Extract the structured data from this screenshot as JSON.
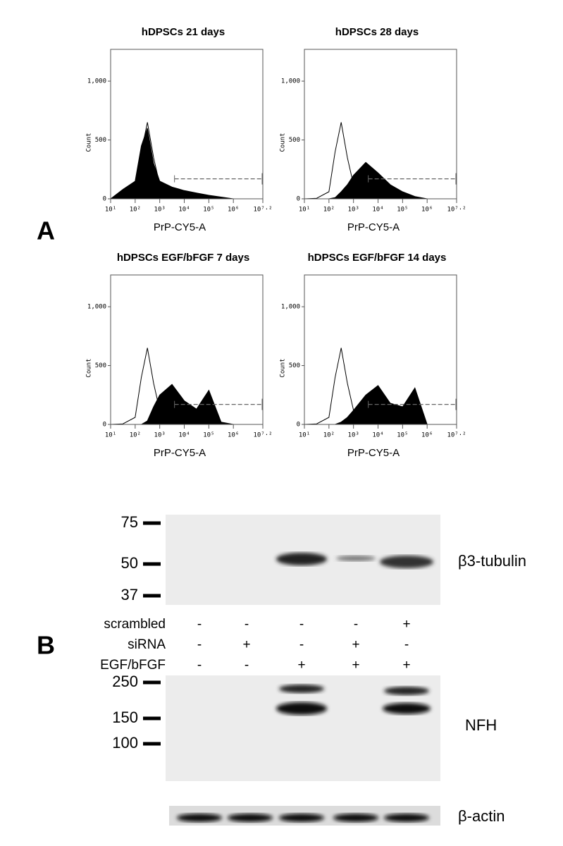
{
  "panel_labels": {
    "a": "A",
    "b": "B"
  },
  "chart_data": [
    {
      "type": "histogram",
      "title": "hDPSCs 21 days",
      "x_label": "PrP-CY5-A",
      "y_label": "Count",
      "xscale": "log",
      "xlim": [
        10,
        15848932
      ],
      "ylim": [
        0,
        1270
      ],
      "xticks": [
        {
          "value": 10,
          "label": "10¹"
        },
        {
          "value": 100,
          "label": "10²"
        },
        {
          "value": 1000,
          "label": "10³"
        },
        {
          "value": 10000,
          "label": "10⁴"
        },
        {
          "value": 100000,
          "label": "10⁵"
        },
        {
          "value": 1000000,
          "label": "10⁶"
        },
        {
          "value": 15848932,
          "label": "10⁷·²"
        }
      ],
      "yticks": [
        0,
        500,
        {
          "value": 1000,
          "label": "1,000"
        }
      ],
      "x": [
        10,
        31.6,
        100,
        178,
        316,
        562,
        1000,
        3162,
        10000,
        31623,
        100000,
        316228,
        1000000,
        10000000
      ],
      "series": [
        {
          "color": "#000000",
          "filled": false,
          "values": [
            0,
            5,
            60,
            400,
            650,
            350,
            120,
            10,
            0,
            0,
            0,
            0,
            0,
            0
          ]
        },
        {
          "color": "#000000",
          "filled": true,
          "values": [
            0,
            80,
            150,
            450,
            600,
            300,
            150,
            100,
            70,
            50,
            30,
            15,
            0,
            0
          ]
        }
      ],
      "gate": {
        "x": [
          4000,
          15848932
        ],
        "y": 170
      }
    },
    {
      "type": "histogram",
      "title": "hDPSCs 28 days",
      "x_label": "PrP-CY5-A",
      "y_label": "Count",
      "xscale": "log",
      "xlim": [
        10,
        15848932
      ],
      "ylim": [
        0,
        1270
      ],
      "xticks": [
        {
          "value": 10,
          "label": "10¹"
        },
        {
          "value": 100,
          "label": "10²"
        },
        {
          "value": 1000,
          "label": "10³"
        },
        {
          "value": 10000,
          "label": "10⁴"
        },
        {
          "value": 100000,
          "label": "10⁵"
        },
        {
          "value": 1000000,
          "label": "10⁶"
        },
        {
          "value": 15848932,
          "label": "10⁷·²"
        }
      ],
      "yticks": [
        0,
        500,
        {
          "value": 1000,
          "label": "1,000"
        }
      ],
      "x": [
        10,
        31.6,
        100,
        178,
        316,
        562,
        1000,
        3162,
        10000,
        31623,
        100000,
        316228,
        1000000,
        10000000
      ],
      "series": [
        {
          "color": "#000000",
          "filled": false,
          "values": [
            0,
            5,
            60,
            400,
            650,
            350,
            120,
            10,
            0,
            0,
            0,
            0,
            0,
            0
          ]
        },
        {
          "color": "#000000",
          "filled": true,
          "values": [
            0,
            0,
            0,
            10,
            60,
            120,
            200,
            310,
            220,
            120,
            60,
            20,
            0,
            0
          ]
        }
      ],
      "gate": {
        "x": [
          4000,
          15848932
        ],
        "y": 170
      }
    },
    {
      "type": "histogram",
      "title": "hDPSCs EGF/bFGF 7 days",
      "x_label": "PrP-CY5-A",
      "y_label": "Count",
      "xscale": "log",
      "xlim": [
        10,
        15848932
      ],
      "ylim": [
        0,
        1270
      ],
      "xticks": [
        {
          "value": 10,
          "label": "10¹"
        },
        {
          "value": 100,
          "label": "10²"
        },
        {
          "value": 1000,
          "label": "10³"
        },
        {
          "value": 10000,
          "label": "10⁴"
        },
        {
          "value": 100000,
          "label": "10⁵"
        },
        {
          "value": 1000000,
          "label": "10⁶"
        },
        {
          "value": 15848932,
          "label": "10⁷·²"
        }
      ],
      "yticks": [
        0,
        500,
        {
          "value": 1000,
          "label": "1,000"
        }
      ],
      "x": [
        10,
        31.6,
        100,
        178,
        316,
        562,
        1000,
        3162,
        10000,
        31623,
        100000,
        316228,
        1000000,
        10000000
      ],
      "series": [
        {
          "color": "#000000",
          "filled": false,
          "values": [
            0,
            5,
            60,
            400,
            650,
            350,
            120,
            10,
            0,
            0,
            0,
            0,
            0,
            0
          ]
        },
        {
          "color": "#000000",
          "filled": true,
          "values": [
            0,
            0,
            0,
            0,
            30,
            150,
            250,
            340,
            200,
            130,
            290,
            20,
            0,
            0
          ]
        }
      ],
      "gate": {
        "x": [
          4000,
          15848932
        ],
        "y": 170
      }
    },
    {
      "type": "histogram",
      "title": "hDPSCs EGF/bFGF 14 days",
      "x_label": "PrP-CY5-A",
      "y_label": "Count",
      "xscale": "log",
      "xlim": [
        10,
        15848932
      ],
      "ylim": [
        0,
        1270
      ],
      "xticks": [
        {
          "value": 10,
          "label": "10¹"
        },
        {
          "value": 100,
          "label": "10²"
        },
        {
          "value": 1000,
          "label": "10³"
        },
        {
          "value": 10000,
          "label": "10⁴"
        },
        {
          "value": 100000,
          "label": "10⁵"
        },
        {
          "value": 1000000,
          "label": "10⁶"
        },
        {
          "value": 15848932,
          "label": "10⁷·²"
        }
      ],
      "yticks": [
        0,
        500,
        {
          "value": 1000,
          "label": "1,000"
        }
      ],
      "x": [
        10,
        31.6,
        100,
        178,
        316,
        562,
        1000,
        3162,
        10000,
        31623,
        100000,
        316228,
        1000000,
        10000000
      ],
      "series": [
        {
          "color": "#000000",
          "filled": false,
          "values": [
            0,
            5,
            60,
            400,
            650,
            350,
            120,
            10,
            0,
            0,
            0,
            0,
            0,
            0
          ]
        },
        {
          "color": "#000000",
          "filled": true,
          "values": [
            0,
            0,
            0,
            0,
            20,
            60,
            120,
            250,
            330,
            180,
            150,
            310,
            0,
            0
          ]
        }
      ],
      "gate": {
        "x": [
          4000,
          15848932
        ],
        "y": 170
      }
    }
  ],
  "blot": {
    "top": {
      "label": "β3-tubulin",
      "markers": [
        75,
        50,
        37
      ]
    },
    "conditions": [
      {
        "name": "scrambled",
        "signs": [
          "-",
          "-",
          "-",
          "-",
          "+"
        ]
      },
      {
        "name": "siRNA",
        "signs": [
          "-",
          "+",
          "-",
          "+",
          "-"
        ]
      },
      {
        "name": "EGF/bFGF",
        "signs": [
          "-",
          "-",
          "+",
          "+",
          "+"
        ]
      }
    ],
    "middle": {
      "label": "NFH",
      "markers": [
        250,
        150,
        100
      ]
    },
    "bottom": {
      "label": "β-actin"
    }
  }
}
